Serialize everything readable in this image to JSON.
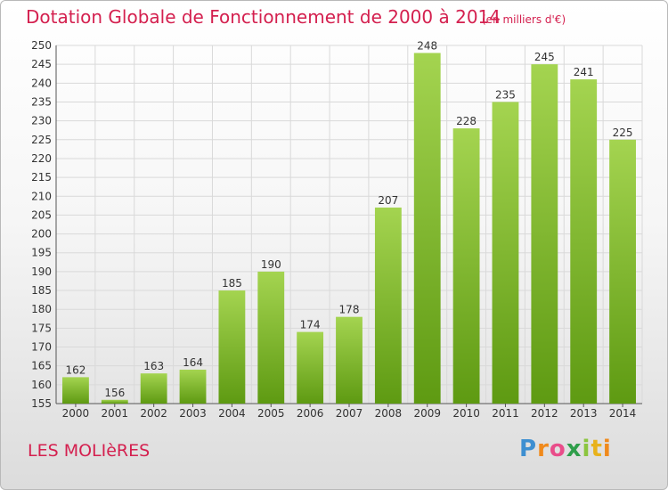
{
  "header": {
    "title": "Dotation Globale de Fonctionnement de 2000 à 2014",
    "subtitle": "(en milliers d'€)"
  },
  "footer": {
    "commune": "LES MOLIèRES",
    "logo_letters": [
      "P",
      "r",
      "o",
      "x",
      "i",
      "t",
      "i"
    ]
  },
  "colors": {
    "title": "#d4204f",
    "bar_light": "#9fd04a",
    "bar_dark": "#5e9a12",
    "grid": "#d9d9d9"
  },
  "chart_data": {
    "type": "bar",
    "title": "Dotation Globale de Fonctionnement de 2000 à 2014",
    "subtitle": "(en milliers d'€)",
    "categories": [
      "2000",
      "2001",
      "2002",
      "2003",
      "2004",
      "2005",
      "2006",
      "2007",
      "2008",
      "2009",
      "2010",
      "2011",
      "2012",
      "2013",
      "2014"
    ],
    "values": [
      162,
      156,
      163,
      164,
      185,
      190,
      174,
      178,
      207,
      248,
      228,
      235,
      245,
      241,
      225
    ],
    "ylim": [
      155,
      250
    ],
    "ytick_step": 5,
    "grid": true,
    "legend": "none"
  }
}
